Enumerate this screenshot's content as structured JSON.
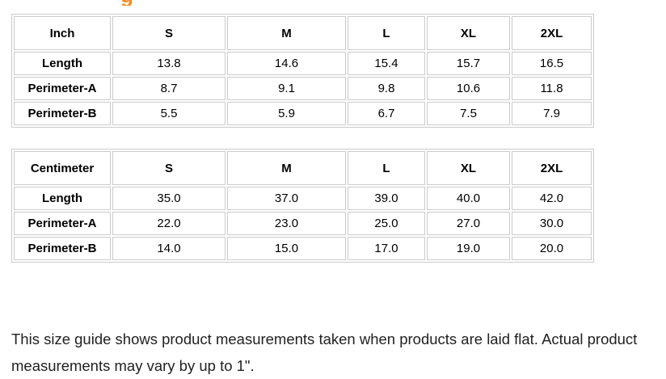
{
  "heading_fragment": {
    "letter": "g",
    "color": "#f68a1e"
  },
  "inch_table": {
    "unit": "Inch",
    "sizes": [
      "S",
      "M",
      "L",
      "XL",
      "2XL"
    ],
    "rows": [
      {
        "label": "Length",
        "values": [
          "13.8",
          "14.6",
          "15.4",
          "15.7",
          "16.5"
        ]
      },
      {
        "label": "Perimeter-A",
        "values": [
          "8.7",
          "9.1",
          "9.8",
          "10.6",
          "11.8"
        ]
      },
      {
        "label": "Perimeter-B",
        "values": [
          "5.5",
          "5.9",
          "6.7",
          "7.5",
          "7.9"
        ]
      }
    ]
  },
  "cm_table": {
    "unit": "Centimeter",
    "sizes": [
      "S",
      "M",
      "L",
      "XL",
      "2XL"
    ],
    "rows": [
      {
        "label": "Length",
        "values": [
          "35.0",
          "37.0",
          "39.0",
          "40.0",
          "42.0"
        ]
      },
      {
        "label": "Perimeter-A",
        "values": [
          "22.0",
          "23.0",
          "25.0",
          "27.0",
          "30.0"
        ]
      },
      {
        "label": "Perimeter-B",
        "values": [
          "14.0",
          "15.0",
          "17.0",
          "19.0",
          "20.0"
        ]
      }
    ]
  },
  "footer": {
    "note": "This size guide shows product measurements taken when products are laid flat. Actual product measurements may vary by up to 1\"."
  }
}
